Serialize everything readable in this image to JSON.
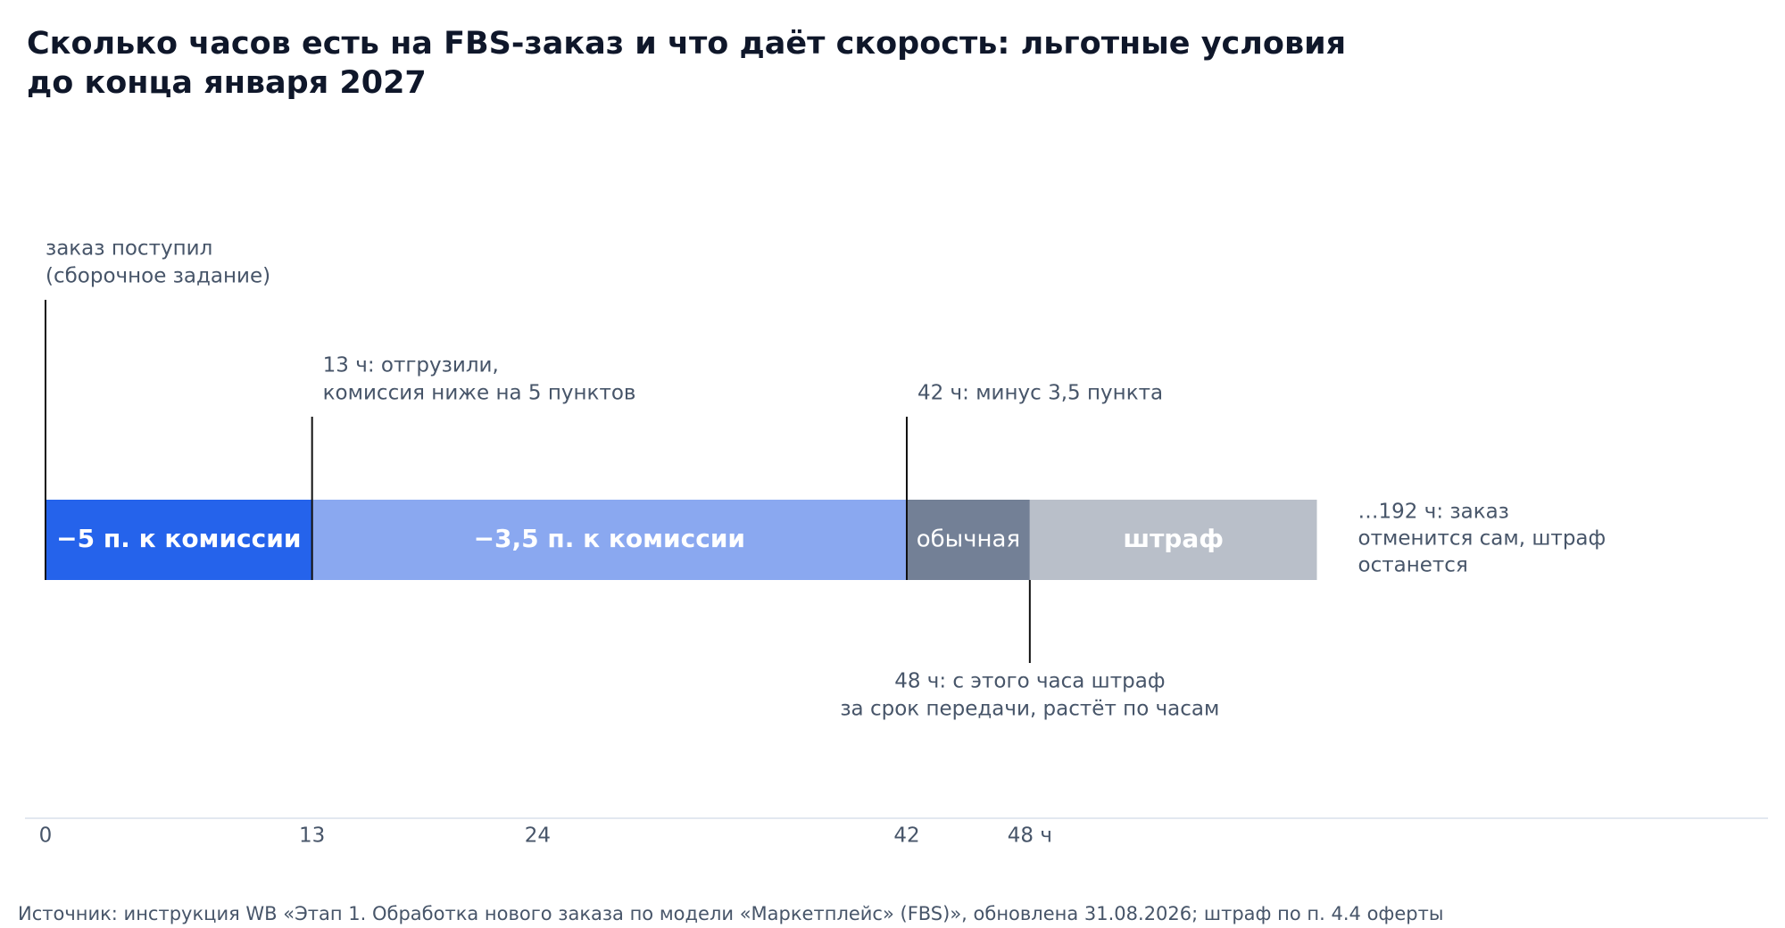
{
  "chart_data": {
    "type": "timeline",
    "title": [
      "Сколько часов есть на FBS-заказ и что даёт скорость: льготные условия",
      "до конца января 2027"
    ],
    "segments": [
      {
        "name": "−5 п. к комиссии",
        "start": 0,
        "end": 13,
        "color": "#2563eb",
        "bold": true
      },
      {
        "name": "−3,5 п. к комиссии",
        "start": 13,
        "end": 42,
        "color": "#8aa8f0",
        "bold": true
      },
      {
        "name": "обычная",
        "start": 42,
        "end": 48,
        "color": "#738096",
        "bold": false
      },
      {
        "name": "штраф",
        "start": 48,
        "end": 62,
        "color": "#b9bfc9",
        "bold": true
      }
    ],
    "annotations": [
      {
        "x": 0,
        "side": "above",
        "text": [
          "заказ поступил",
          "(сборочное задание)"
        ]
      },
      {
        "x": 13,
        "side": "above",
        "text": [
          "13 ч: отгрузили,",
          "комиссия ниже на 5 пунктов"
        ]
      },
      {
        "x": 42,
        "side": "above",
        "text": [
          "42 ч: минус 3,5 пункта"
        ]
      },
      {
        "x": 48,
        "side": "below",
        "text": [
          "48 ч: с этого часа штраф",
          "за срок передачи, растёт по часам"
        ]
      }
    ],
    "end_note": [
      "…192 ч: заказ",
      "отменится сам, штраф",
      "останется"
    ],
    "xlim": [
      -1,
      84
    ],
    "xticks": [
      0,
      13,
      24,
      42,
      {
        "value": 48,
        "label": "48 ч"
      }
    ],
    "source": "Источник: инструкция WB «Этап 1. Обработка нового заказа по модели «Маркетплейс» (FBS)», обновлена 31.08.2026; штраф по п. 4.4 оферты"
  }
}
